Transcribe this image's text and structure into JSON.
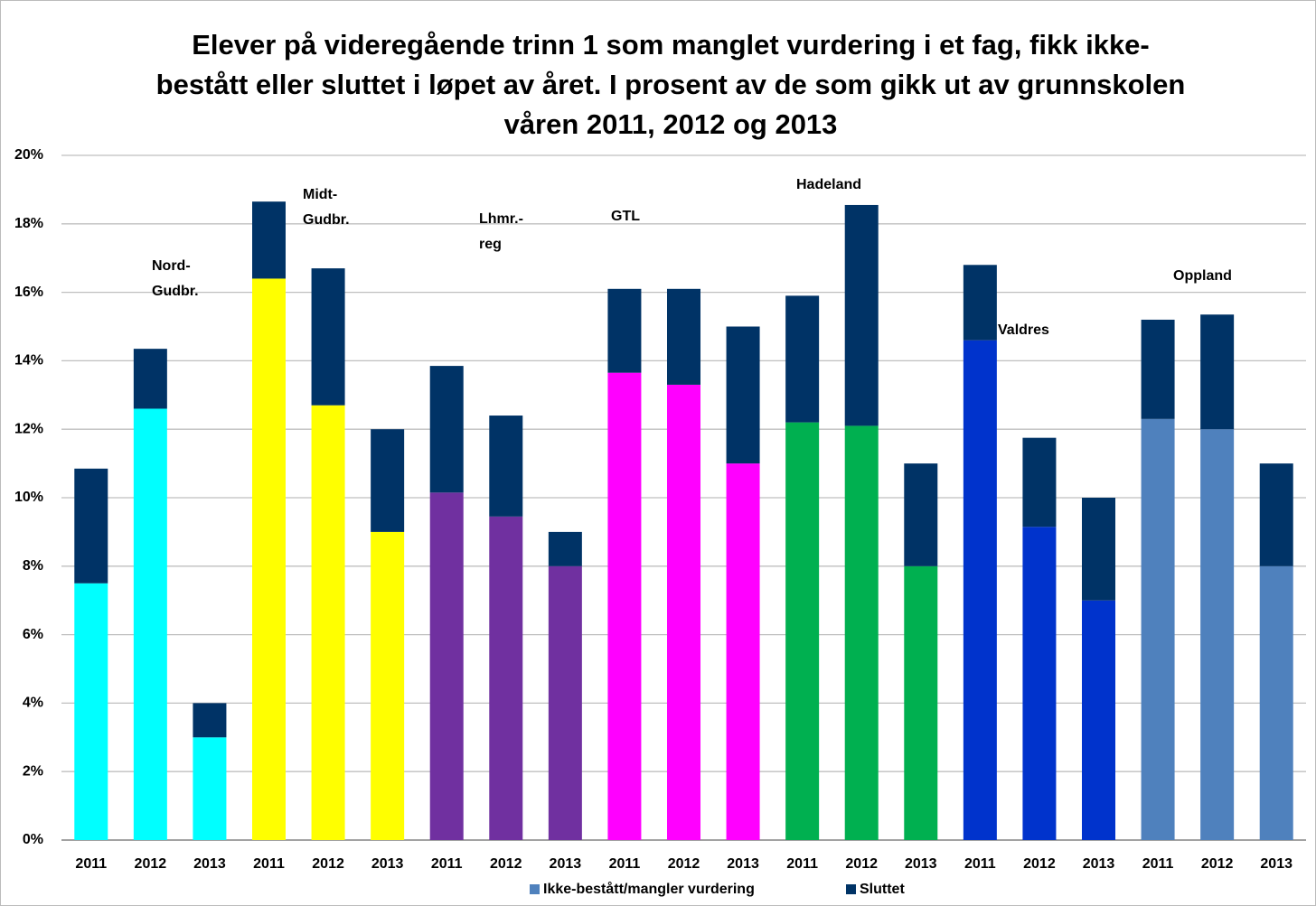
{
  "chart_data": {
    "type": "stacked-bar",
    "title": [
      "Elever på videregående trinn 1 som manglet vurdering i et fag, fikk ikke-",
      "bestått eller sluttet i løpet av året. I prosent av de som gikk ut av grunnskolen",
      "våren 2011, 2012 og 2013"
    ],
    "categories": [
      "2011",
      "2012",
      "2013",
      "2011",
      "2012",
      "2013",
      "2011",
      "2012",
      "2013",
      "2011",
      "2012",
      "2013",
      "2011",
      "2012",
      "2013",
      "2011",
      "2012",
      "2013",
      "2011",
      "2012",
      "2013"
    ],
    "series": [
      {
        "name": "Ikke-bestått/mangler vurdering",
        "color": "#4f81bd",
        "colors": [
          "#00ffff",
          "#00ffff",
          "#00ffff",
          "#ffff00",
          "#ffff00",
          "#ffff00",
          "#7030a0",
          "#7030a0",
          "#7030a0",
          "#ff00ff",
          "#ff00ff",
          "#ff00ff",
          "#00b050",
          "#00b050",
          "#00b050",
          "#0033cc",
          "#0033cc",
          "#0033cc",
          "#4f81bd",
          "#4f81bd",
          "#4f81bd"
        ],
        "values": [
          7.5,
          12.6,
          3.0,
          16.4,
          12.7,
          9.0,
          10.15,
          9.45,
          8.0,
          13.65,
          13.3,
          11.0,
          12.2,
          12.1,
          8.0,
          14.6,
          9.15,
          7.0,
          12.3,
          12.0,
          8.0
        ]
      },
      {
        "name": "Sluttet",
        "color": "#003366",
        "values": [
          3.35,
          1.75,
          1.0,
          2.25,
          4.0,
          3.0,
          3.7,
          2.95,
          1.0,
          2.45,
          2.8,
          4.0,
          3.7,
          6.45,
          3.0,
          2.2,
          2.6,
          3.0,
          2.9,
          3.35,
          3.0
        ]
      }
    ],
    "annotations": [
      [
        "Nord-",
        "Gudbr."
      ],
      [
        "Midt-",
        "Gudbr."
      ],
      [
        "Lhmr.-",
        "reg"
      ],
      [
        "GTL"
      ],
      [
        "Hadeland"
      ],
      [
        "Valdres"
      ],
      [
        "Oppland"
      ]
    ],
    "ylim": [
      0,
      20
    ],
    "yticks": [
      {
        "value": 0,
        "label": "0%"
      },
      {
        "value": 2,
        "label": "2%"
      },
      {
        "value": 4,
        "label": "4%"
      },
      {
        "value": 6,
        "label": "6%"
      },
      {
        "value": 8,
        "label": "8%"
      },
      {
        "value": 10,
        "label": "10%"
      },
      {
        "value": 12,
        "label": "12%"
      },
      {
        "value": 14,
        "label": "14%"
      },
      {
        "value": 16,
        "label": "16%"
      },
      {
        "value": 18,
        "label": "18%"
      },
      {
        "value": 20,
        "label": "20%"
      }
    ],
    "grid": true,
    "legend": "bottom"
  }
}
